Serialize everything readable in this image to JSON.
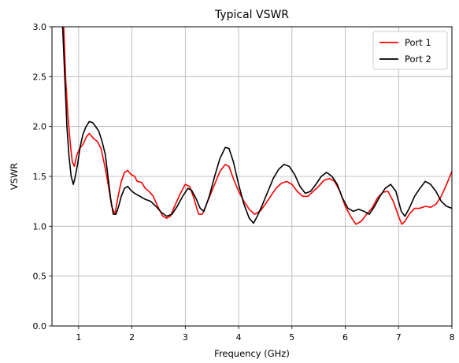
{
  "chart_data": {
    "type": "line",
    "title": "Typical VSWR",
    "xlabel": "Frequency (GHz)",
    "ylabel": "VSWR",
    "xlim": [
      0.5,
      8.0
    ],
    "ylim": [
      0.0,
      3.0
    ],
    "xticks": [
      1,
      2,
      3,
      4,
      5,
      6,
      7,
      8
    ],
    "yticks": [
      0.0,
      0.5,
      1.0,
      1.5,
      2.0,
      2.5,
      3.0
    ],
    "ytick_labels": [
      "0.0",
      "0.5",
      "1.0",
      "1.5",
      "2.0",
      "2.5",
      "3.0"
    ],
    "xtick_labels": [
      "1",
      "2",
      "3",
      "4",
      "5",
      "6",
      "7",
      "8"
    ],
    "grid": true,
    "legend_position": "top-right",
    "series": [
      {
        "name": "Port 1",
        "color": "#ff0000",
        "points": [
          [
            0.72,
            3.0
          ],
          [
            0.76,
            2.45
          ],
          [
            0.8,
            2.1
          ],
          [
            0.84,
            1.85
          ],
          [
            0.88,
            1.65
          ],
          [
            0.92,
            1.6
          ],
          [
            0.97,
            1.72
          ],
          [
            1.02,
            1.78
          ],
          [
            1.08,
            1.82
          ],
          [
            1.15,
            1.9
          ],
          [
            1.2,
            1.93
          ],
          [
            1.28,
            1.88
          ],
          [
            1.35,
            1.85
          ],
          [
            1.42,
            1.78
          ],
          [
            1.5,
            1.58
          ],
          [
            1.56,
            1.4
          ],
          [
            1.62,
            1.2
          ],
          [
            1.68,
            1.12
          ],
          [
            1.74,
            1.3
          ],
          [
            1.8,
            1.45
          ],
          [
            1.86,
            1.54
          ],
          [
            1.92,
            1.56
          ],
          [
            1.98,
            1.52
          ],
          [
            2.05,
            1.5
          ],
          [
            2.1,
            1.45
          ],
          [
            2.18,
            1.44
          ],
          [
            2.25,
            1.38
          ],
          [
            2.32,
            1.35
          ],
          [
            2.4,
            1.3
          ],
          [
            2.5,
            1.18
          ],
          [
            2.58,
            1.1
          ],
          [
            2.65,
            1.08
          ],
          [
            2.72,
            1.1
          ],
          [
            2.8,
            1.2
          ],
          [
            2.9,
            1.32
          ],
          [
            3.0,
            1.42
          ],
          [
            3.08,
            1.4
          ],
          [
            3.15,
            1.3
          ],
          [
            3.25,
            1.12
          ],
          [
            3.32,
            1.12
          ],
          [
            3.42,
            1.25
          ],
          [
            3.55,
            1.42
          ],
          [
            3.65,
            1.55
          ],
          [
            3.75,
            1.62
          ],
          [
            3.82,
            1.6
          ],
          [
            3.9,
            1.48
          ],
          [
            4.0,
            1.35
          ],
          [
            4.1,
            1.25
          ],
          [
            4.2,
            1.17
          ],
          [
            4.3,
            1.12
          ],
          [
            4.4,
            1.15
          ],
          [
            4.5,
            1.22
          ],
          [
            4.6,
            1.3
          ],
          [
            4.7,
            1.38
          ],
          [
            4.8,
            1.43
          ],
          [
            4.9,
            1.45
          ],
          [
            5.0,
            1.42
          ],
          [
            5.1,
            1.35
          ],
          [
            5.2,
            1.3
          ],
          [
            5.3,
            1.3
          ],
          [
            5.4,
            1.35
          ],
          [
            5.5,
            1.4
          ],
          [
            5.6,
            1.46
          ],
          [
            5.7,
            1.48
          ],
          [
            5.8,
            1.45
          ],
          [
            5.9,
            1.35
          ],
          [
            6.0,
            1.2
          ],
          [
            6.1,
            1.1
          ],
          [
            6.2,
            1.02
          ],
          [
            6.3,
            1.05
          ],
          [
            6.4,
            1.12
          ],
          [
            6.5,
            1.18
          ],
          [
            6.6,
            1.28
          ],
          [
            6.7,
            1.34
          ],
          [
            6.8,
            1.35
          ],
          [
            6.9,
            1.25
          ],
          [
            7.0,
            1.1
          ],
          [
            7.06,
            1.02
          ],
          [
            7.12,
            1.05
          ],
          [
            7.2,
            1.12
          ],
          [
            7.3,
            1.18
          ],
          [
            7.4,
            1.18
          ],
          [
            7.5,
            1.2
          ],
          [
            7.6,
            1.19
          ],
          [
            7.7,
            1.22
          ],
          [
            7.8,
            1.3
          ],
          [
            7.9,
            1.42
          ],
          [
            8.0,
            1.55
          ]
        ]
      },
      {
        "name": "Port 2",
        "color": "#000000",
        "points": [
          [
            0.7,
            3.0
          ],
          [
            0.74,
            2.5
          ],
          [
            0.78,
            2.0
          ],
          [
            0.82,
            1.7
          ],
          [
            0.86,
            1.5
          ],
          [
            0.9,
            1.42
          ],
          [
            0.93,
            1.48
          ],
          [
            0.98,
            1.62
          ],
          [
            1.03,
            1.8
          ],
          [
            1.08,
            1.92
          ],
          [
            1.14,
            2.0
          ],
          [
            1.2,
            2.05
          ],
          [
            1.26,
            2.04
          ],
          [
            1.32,
            2.0
          ],
          [
            1.38,
            1.95
          ],
          [
            1.44,
            1.85
          ],
          [
            1.5,
            1.72
          ],
          [
            1.55,
            1.5
          ],
          [
            1.6,
            1.28
          ],
          [
            1.65,
            1.12
          ],
          [
            1.7,
            1.12
          ],
          [
            1.75,
            1.2
          ],
          [
            1.8,
            1.3
          ],
          [
            1.86,
            1.38
          ],
          [
            1.92,
            1.4
          ],
          [
            1.98,
            1.36
          ],
          [
            2.05,
            1.33
          ],
          [
            2.15,
            1.3
          ],
          [
            2.25,
            1.27
          ],
          [
            2.35,
            1.25
          ],
          [
            2.45,
            1.2
          ],
          [
            2.55,
            1.14
          ],
          [
            2.65,
            1.1
          ],
          [
            2.75,
            1.12
          ],
          [
            2.85,
            1.2
          ],
          [
            2.95,
            1.3
          ],
          [
            3.05,
            1.38
          ],
          [
            3.12,
            1.36
          ],
          [
            3.2,
            1.28
          ],
          [
            3.28,
            1.18
          ],
          [
            3.35,
            1.15
          ],
          [
            3.45,
            1.3
          ],
          [
            3.55,
            1.5
          ],
          [
            3.65,
            1.68
          ],
          [
            3.75,
            1.79
          ],
          [
            3.82,
            1.78
          ],
          [
            3.9,
            1.65
          ],
          [
            4.0,
            1.42
          ],
          [
            4.1,
            1.22
          ],
          [
            4.2,
            1.08
          ],
          [
            4.28,
            1.03
          ],
          [
            4.35,
            1.1
          ],
          [
            4.45,
            1.22
          ],
          [
            4.55,
            1.35
          ],
          [
            4.65,
            1.48
          ],
          [
            4.75,
            1.57
          ],
          [
            4.85,
            1.62
          ],
          [
            4.95,
            1.6
          ],
          [
            5.05,
            1.52
          ],
          [
            5.15,
            1.4
          ],
          [
            5.25,
            1.33
          ],
          [
            5.35,
            1.35
          ],
          [
            5.45,
            1.42
          ],
          [
            5.55,
            1.5
          ],
          [
            5.65,
            1.54
          ],
          [
            5.75,
            1.5
          ],
          [
            5.85,
            1.42
          ],
          [
            5.95,
            1.28
          ],
          [
            6.05,
            1.18
          ],
          [
            6.15,
            1.15
          ],
          [
            6.25,
            1.17
          ],
          [
            6.35,
            1.15
          ],
          [
            6.45,
            1.12
          ],
          [
            6.55,
            1.2
          ],
          [
            6.65,
            1.3
          ],
          [
            6.75,
            1.38
          ],
          [
            6.85,
            1.42
          ],
          [
            6.95,
            1.35
          ],
          [
            7.05,
            1.15
          ],
          [
            7.12,
            1.1
          ],
          [
            7.2,
            1.18
          ],
          [
            7.3,
            1.3
          ],
          [
            7.4,
            1.38
          ],
          [
            7.5,
            1.45
          ],
          [
            7.6,
            1.42
          ],
          [
            7.7,
            1.35
          ],
          [
            7.8,
            1.25
          ],
          [
            7.9,
            1.2
          ],
          [
            8.0,
            1.18
          ]
        ]
      }
    ]
  }
}
